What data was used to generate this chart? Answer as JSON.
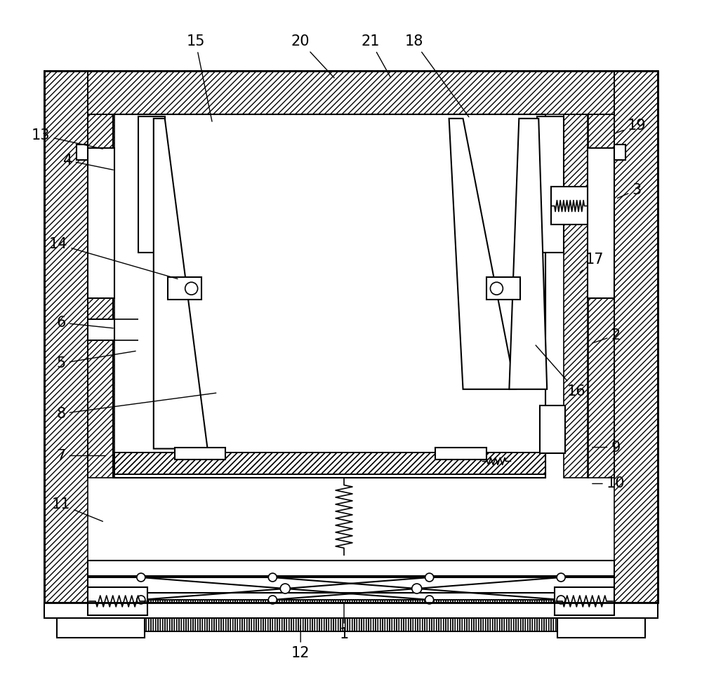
{
  "bg_color": "#ffffff",
  "fig_width": 10.0,
  "fig_height": 9.75,
  "annotations": {
    "1": [
      490,
      905,
      490,
      858
    ],
    "2": [
      878,
      478,
      842,
      490
    ],
    "3": [
      908,
      270,
      878,
      283
    ],
    "4": [
      95,
      228,
      163,
      242
    ],
    "5": [
      86,
      518,
      195,
      500
    ],
    "6": [
      86,
      460,
      163,
      468
    ],
    "7": [
      86,
      650,
      152,
      650
    ],
    "8": [
      86,
      590,
      310,
      560
    ],
    "9": [
      878,
      638,
      842,
      638
    ],
    "10": [
      878,
      690,
      842,
      690
    ],
    "11": [
      86,
      720,
      148,
      745
    ],
    "12": [
      428,
      932,
      428,
      890
    ],
    "13": [
      57,
      192,
      148,
      212
    ],
    "14": [
      82,
      348,
      255,
      398
    ],
    "15": [
      278,
      58,
      302,
      175
    ],
    "16": [
      822,
      558,
      762,
      490
    ],
    "17": [
      848,
      370,
      825,
      390
    ],
    "18": [
      590,
      58,
      670,
      168
    ],
    "19": [
      908,
      178,
      875,
      190
    ],
    "20": [
      428,
      58,
      478,
      112
    ],
    "21": [
      528,
      58,
      558,
      112
    ]
  }
}
